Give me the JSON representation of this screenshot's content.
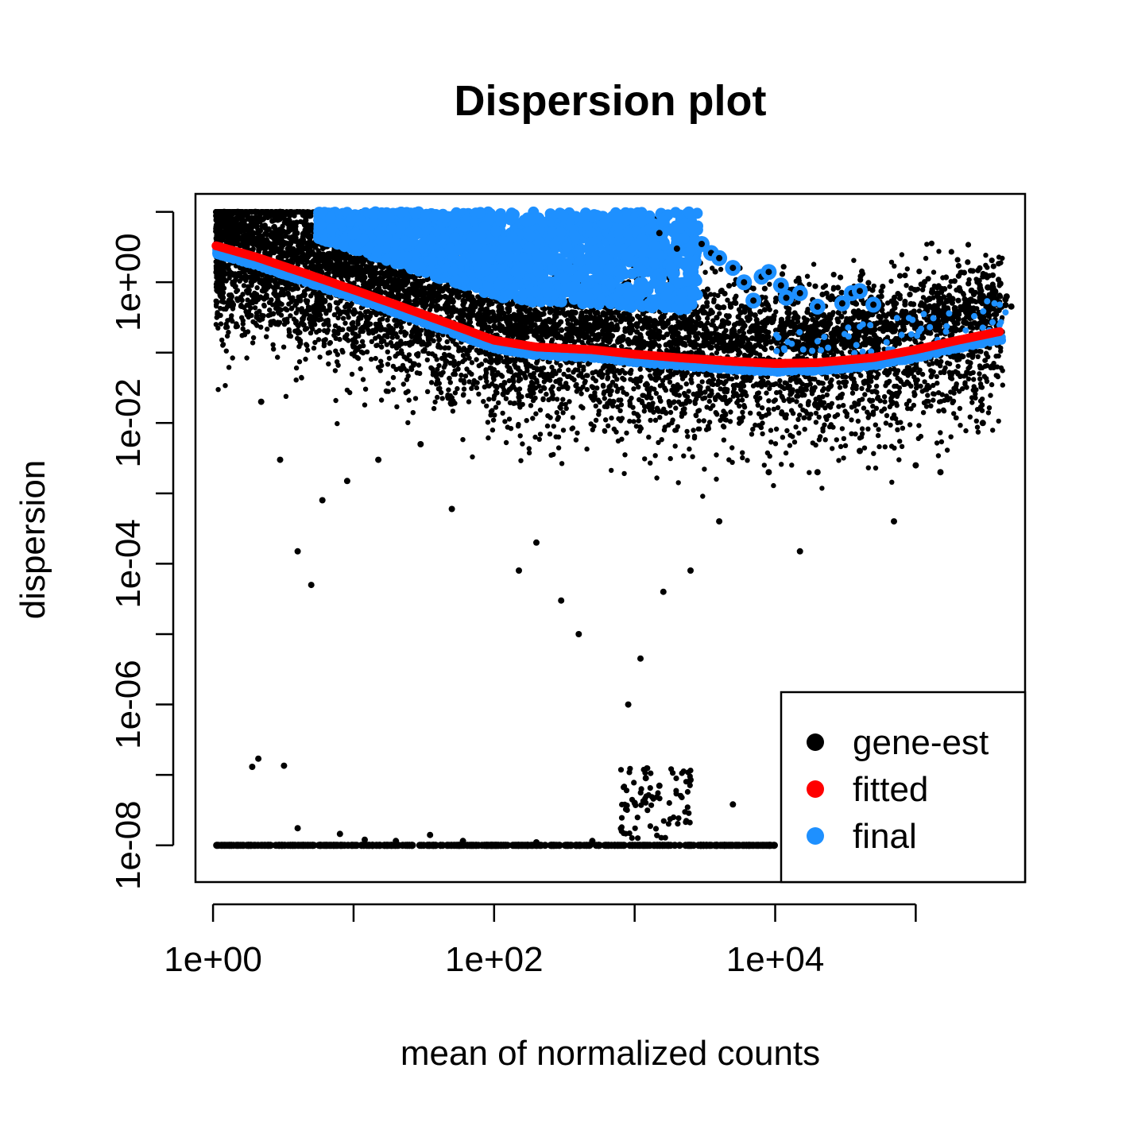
{
  "chart_data": {
    "type": "scatter",
    "title": "Dispersion plot",
    "xlabel": "mean of normalized counts",
    "ylabel": "dispersion",
    "x_scale": "log10",
    "y_scale": "log10",
    "xlim": [
      0.75,
      600000
    ],
    "ylim": [
      3e-09,
      18
    ],
    "x_ticks": [
      1,
      10,
      100,
      1000,
      10000,
      100000
    ],
    "x_tick_labels": [
      "1e+00",
      "",
      "1e+02",
      "",
      "1e+04",
      ""
    ],
    "y_ticks": [
      1e-08,
      1e-07,
      1e-06,
      1e-05,
      0.0001,
      0.001,
      0.01,
      0.1,
      1,
      10
    ],
    "y_tick_labels": [
      "1e-08",
      "",
      "1e-06",
      "",
      "1e-04",
      "",
      "1e-02",
      "",
      "1e+00",
      ""
    ],
    "grid": false,
    "legend": {
      "placement": "bottom-right",
      "entries": [
        {
          "label": "gene-est",
          "color": "#000000"
        },
        {
          "label": "fitted",
          "color": "#ff0000"
        },
        {
          "label": "final",
          "color": "#1e90ff"
        }
      ]
    },
    "series": [
      {
        "name": "gene-est",
        "color": "#000000",
        "note_points": [
          [
            1.06,
            4.2
          ],
          [
            1.2,
            10
          ],
          [
            1.5,
            10
          ],
          [
            2.0,
            10
          ],
          [
            3.0,
            10
          ],
          [
            2.2,
            0.02
          ],
          [
            3.0,
            0.003
          ],
          [
            4.0,
            0.00015
          ],
          [
            5.0,
            5e-05
          ],
          [
            6.0,
            0.0008
          ],
          [
            9.0,
            0.0015
          ],
          [
            15,
            0.003
          ],
          [
            30,
            0.005
          ],
          [
            50,
            0.0006
          ],
          [
            150,
            8e-05
          ],
          [
            200,
            0.0002
          ],
          [
            300,
            3e-05
          ],
          [
            400,
            1e-05
          ],
          [
            900,
            1e-06
          ],
          [
            1100,
            4.5e-06
          ],
          [
            1600,
            4e-05
          ],
          [
            2500,
            8e-05
          ],
          [
            4000,
            0.0004
          ],
          [
            9000,
            0.002
          ],
          [
            20000,
            0.002
          ],
          [
            40000,
            0.004
          ],
          [
            70000,
            0.0004
          ],
          [
            100000,
            0.0025
          ],
          [
            150000,
            0.002
          ],
          [
            300000,
            0.01
          ],
          [
            15000,
            0.00015
          ],
          [
            1.8,
            1e-08
          ],
          [
            1.9,
            1.3e-07
          ],
          [
            2.1,
            1.7e-07
          ],
          [
            3.2,
            1.35e-07
          ],
          [
            4.0,
            1.75e-08
          ],
          [
            8,
            1.45e-08
          ],
          [
            12,
            1.2e-08
          ],
          [
            20,
            1.15e-08
          ],
          [
            35,
            1.4e-08
          ],
          [
            60,
            1.15e-08
          ],
          [
            200,
            1.1e-08
          ],
          [
            500,
            1.15e-08
          ],
          [
            1000,
            4e-08
          ],
          [
            1200,
            9e-08
          ],
          [
            1500,
            7e-08
          ],
          [
            2500,
            8.5e-08
          ],
          [
            5000,
            3.8e-08
          ]
        ]
      },
      {
        "name": "fitted",
        "color": "#ff0000",
        "x": [
          1.05,
          2,
          5,
          10,
          20,
          50,
          100,
          200,
          500,
          1000,
          2000,
          5000,
          10000,
          20000,
          50000,
          100000,
          200000,
          400000
        ],
        "y": [
          3.3,
          2.3,
          1.25,
          0.78,
          0.48,
          0.25,
          0.15,
          0.12,
          0.11,
          0.095,
          0.085,
          0.075,
          0.07,
          0.072,
          0.085,
          0.11,
          0.15,
          0.2
        ]
      },
      {
        "name": "final",
        "color": "#1e90ff",
        "note": "shrunken estimates lie just below the fitted curve; outliers keep their gene-wise estimate (large circles near the top)"
      }
    ]
  }
}
